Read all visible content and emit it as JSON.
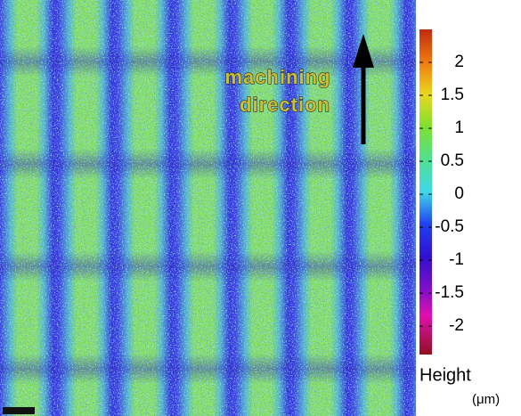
{
  "annotation": {
    "lines": [
      "machining",
      "direction"
    ]
  },
  "colorbar": {
    "label": "Height",
    "unit": "(μm)",
    "lim": [
      -2.43,
      2.5
    ],
    "ticks": [
      2,
      1.5,
      1,
      0.5,
      0,
      -0.5,
      -1,
      -1.5,
      -2
    ]
  }
}
